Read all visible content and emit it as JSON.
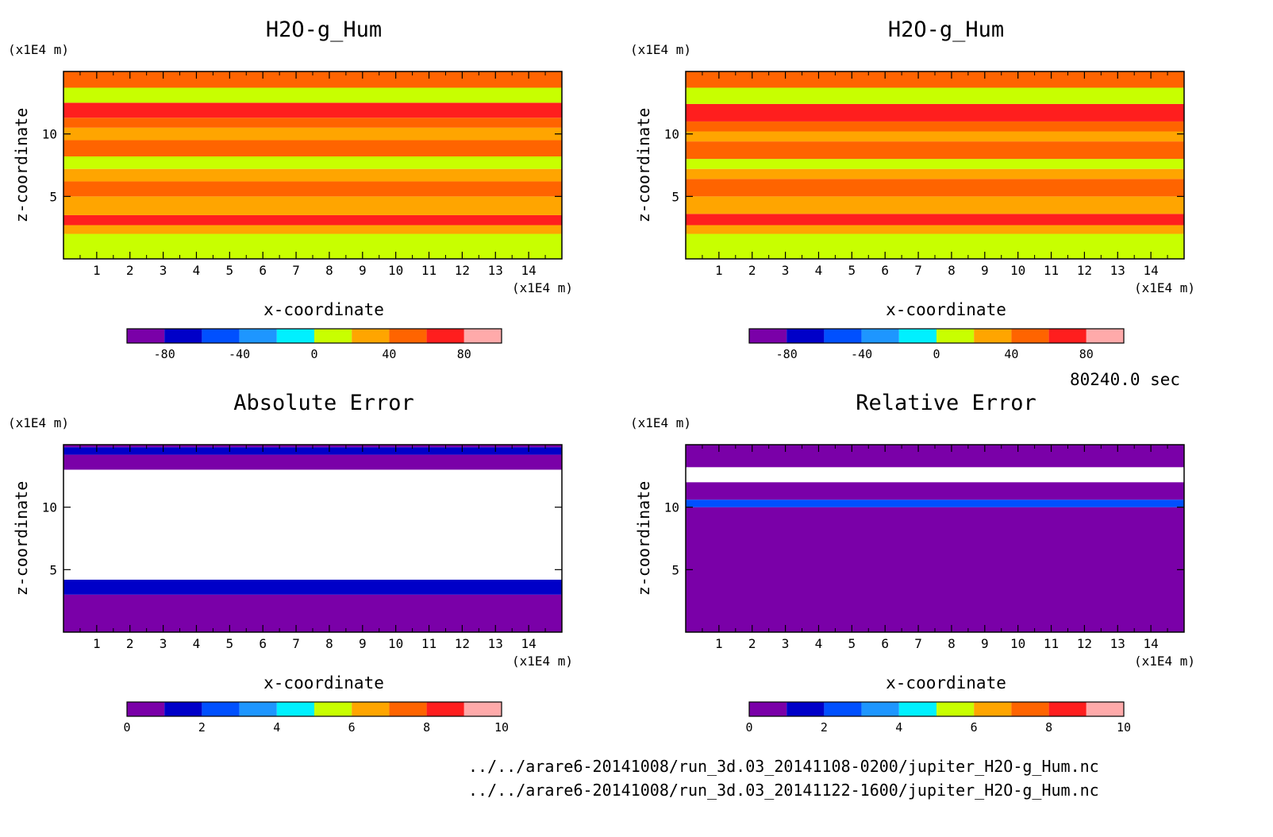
{
  "chart_data": [
    {
      "type": "heatmap",
      "title": "H2O-g_Hum",
      "xlabel": "x-coordinate",
      "ylabel": "z-coordinate",
      "x_unit": "(x1E4 m)",
      "y_unit": "(x1E4 m)",
      "xlim": [
        0,
        15
      ],
      "ylim": [
        0,
        15
      ],
      "xticks": [
        1,
        2,
        3,
        4,
        5,
        6,
        7,
        8,
        9,
        10,
        11,
        12,
        13,
        14
      ],
      "yticks": [
        5,
        10
      ],
      "colorbar": {
        "min": -100,
        "max": 100,
        "ticks": [
          -80,
          -40,
          0,
          40,
          80
        ]
      },
      "bands": [
        {
          "z0": 0,
          "z1": 2,
          "value": 5
        },
        {
          "z0": 2,
          "z1": 2.7,
          "value": 35
        },
        {
          "z0": 2.7,
          "z1": 3.5,
          "value": 65
        },
        {
          "z0": 3.5,
          "z1": 5,
          "value": 35
        },
        {
          "z0": 5,
          "z1": 6.2,
          "value": 45
        },
        {
          "z0": 6.2,
          "z1": 7.2,
          "value": 35
        },
        {
          "z0": 7.2,
          "z1": 8.2,
          "value": 5
        },
        {
          "z0": 8.2,
          "z1": 9.5,
          "value": 55
        },
        {
          "z0": 9.5,
          "z1": 10.5,
          "value": 35
        },
        {
          "z0": 10.5,
          "z1": 11.3,
          "value": 45
        },
        {
          "z0": 11.3,
          "z1": 12.5,
          "value": 65
        },
        {
          "z0": 12.5,
          "z1": 13.7,
          "value": 5
        },
        {
          "z0": 13.7,
          "z1": 15,
          "value": 55
        }
      ]
    },
    {
      "type": "heatmap",
      "title": "H2O-g_Hum",
      "xlabel": "x-coordinate",
      "ylabel": "z-coordinate",
      "x_unit": "(x1E4 m)",
      "y_unit": "(x1E4 m)",
      "xlim": [
        0,
        15
      ],
      "ylim": [
        0,
        15
      ],
      "xticks": [
        1,
        2,
        3,
        4,
        5,
        6,
        7,
        8,
        9,
        10,
        11,
        12,
        13,
        14
      ],
      "yticks": [
        5,
        10
      ],
      "colorbar": {
        "min": -100,
        "max": 100,
        "ticks": [
          -80,
          -40,
          0,
          40,
          80
        ]
      },
      "bands": [
        {
          "z0": 0,
          "z1": 2,
          "value": 5
        },
        {
          "z0": 2,
          "z1": 2.7,
          "value": 35
        },
        {
          "z0": 2.7,
          "z1": 3.6,
          "value": 75
        },
        {
          "z0": 3.6,
          "z1": 5,
          "value": 35
        },
        {
          "z0": 5,
          "z1": 6.4,
          "value": 45
        },
        {
          "z0": 6.4,
          "z1": 7.2,
          "value": 35
        },
        {
          "z0": 7.2,
          "z1": 8,
          "value": 5
        },
        {
          "z0": 8,
          "z1": 9.4,
          "value": 55
        },
        {
          "z0": 9.4,
          "z1": 10.2,
          "value": 35
        },
        {
          "z0": 10.2,
          "z1": 11,
          "value": 55
        },
        {
          "z0": 11,
          "z1": 12.4,
          "value": 65
        },
        {
          "z0": 12.4,
          "z1": 13.7,
          "value": 5
        },
        {
          "z0": 13.7,
          "z1": 15,
          "value": 55
        }
      ]
    },
    {
      "type": "heatmap",
      "title": "Absolute Error",
      "xlabel": "x-coordinate",
      "ylabel": "z-coordinate",
      "x_unit": "(x1E4 m)",
      "y_unit": "(x1E4 m)",
      "xlim": [
        0,
        15
      ],
      "ylim": [
        0,
        15
      ],
      "xticks": [
        1,
        2,
        3,
        4,
        5,
        6,
        7,
        8,
        9,
        10,
        11,
        12,
        13,
        14
      ],
      "yticks": [
        5,
        10
      ],
      "colorbar": {
        "min": 0,
        "max": 10,
        "ticks": [
          0,
          2,
          4,
          6,
          8,
          10
        ]
      },
      "bands": [
        {
          "z0": 0,
          "z1": 3,
          "value": 0.5
        },
        {
          "z0": 3,
          "z1": 4.2,
          "value": 1.5
        },
        {
          "z0": 4.2,
          "z1": 13,
          "value": null
        },
        {
          "z0": 13,
          "z1": 14.2,
          "value": 0.5
        },
        {
          "z0": 14.2,
          "z1": 14.8,
          "value": 1.5
        },
        {
          "z0": 14.8,
          "z1": 15,
          "value": 0.5
        }
      ]
    },
    {
      "type": "heatmap",
      "title": "Relative Error",
      "xlabel": "x-coordinate",
      "ylabel": "z-coordinate",
      "x_unit": "(x1E4 m)",
      "y_unit": "(x1E4 m)",
      "xlim": [
        0,
        15
      ],
      "ylim": [
        0,
        15
      ],
      "xticks": [
        1,
        2,
        3,
        4,
        5,
        6,
        7,
        8,
        9,
        10,
        11,
        12,
        13,
        14
      ],
      "yticks": [
        5,
        10
      ],
      "colorbar": {
        "min": 0,
        "max": 10,
        "ticks": [
          0,
          2,
          4,
          6,
          8,
          10
        ]
      },
      "bands": [
        {
          "z0": 0,
          "z1": 10,
          "value": 0.5
        },
        {
          "z0": 10,
          "z1": 10.6,
          "value": 2.5
        },
        {
          "z0": 10.6,
          "z1": 12,
          "value": 0.5
        },
        {
          "z0": 12,
          "z1": 13.2,
          "value": null
        },
        {
          "z0": 13.2,
          "z1": 15,
          "value": 0.5
        }
      ]
    }
  ],
  "time_label": "80240.0 sec",
  "files": [
    "../../arare6-20141008/run_3d.03_20141108-0200/jupiter_H2O-g_Hum.nc",
    "../../arare6-20141008/run_3d.03_20141122-1600/jupiter_H2O-g_Hum.nc"
  ],
  "palette": [
    "#7a00a8",
    "#0000c8",
    "#0050ff",
    "#1e96ff",
    "#00f0ff",
    "#c8ff00",
    "#ffa500",
    "#ff6400",
    "#ff1e1e",
    "#ffaaaa"
  ],
  "missing_color": "#ffffff"
}
